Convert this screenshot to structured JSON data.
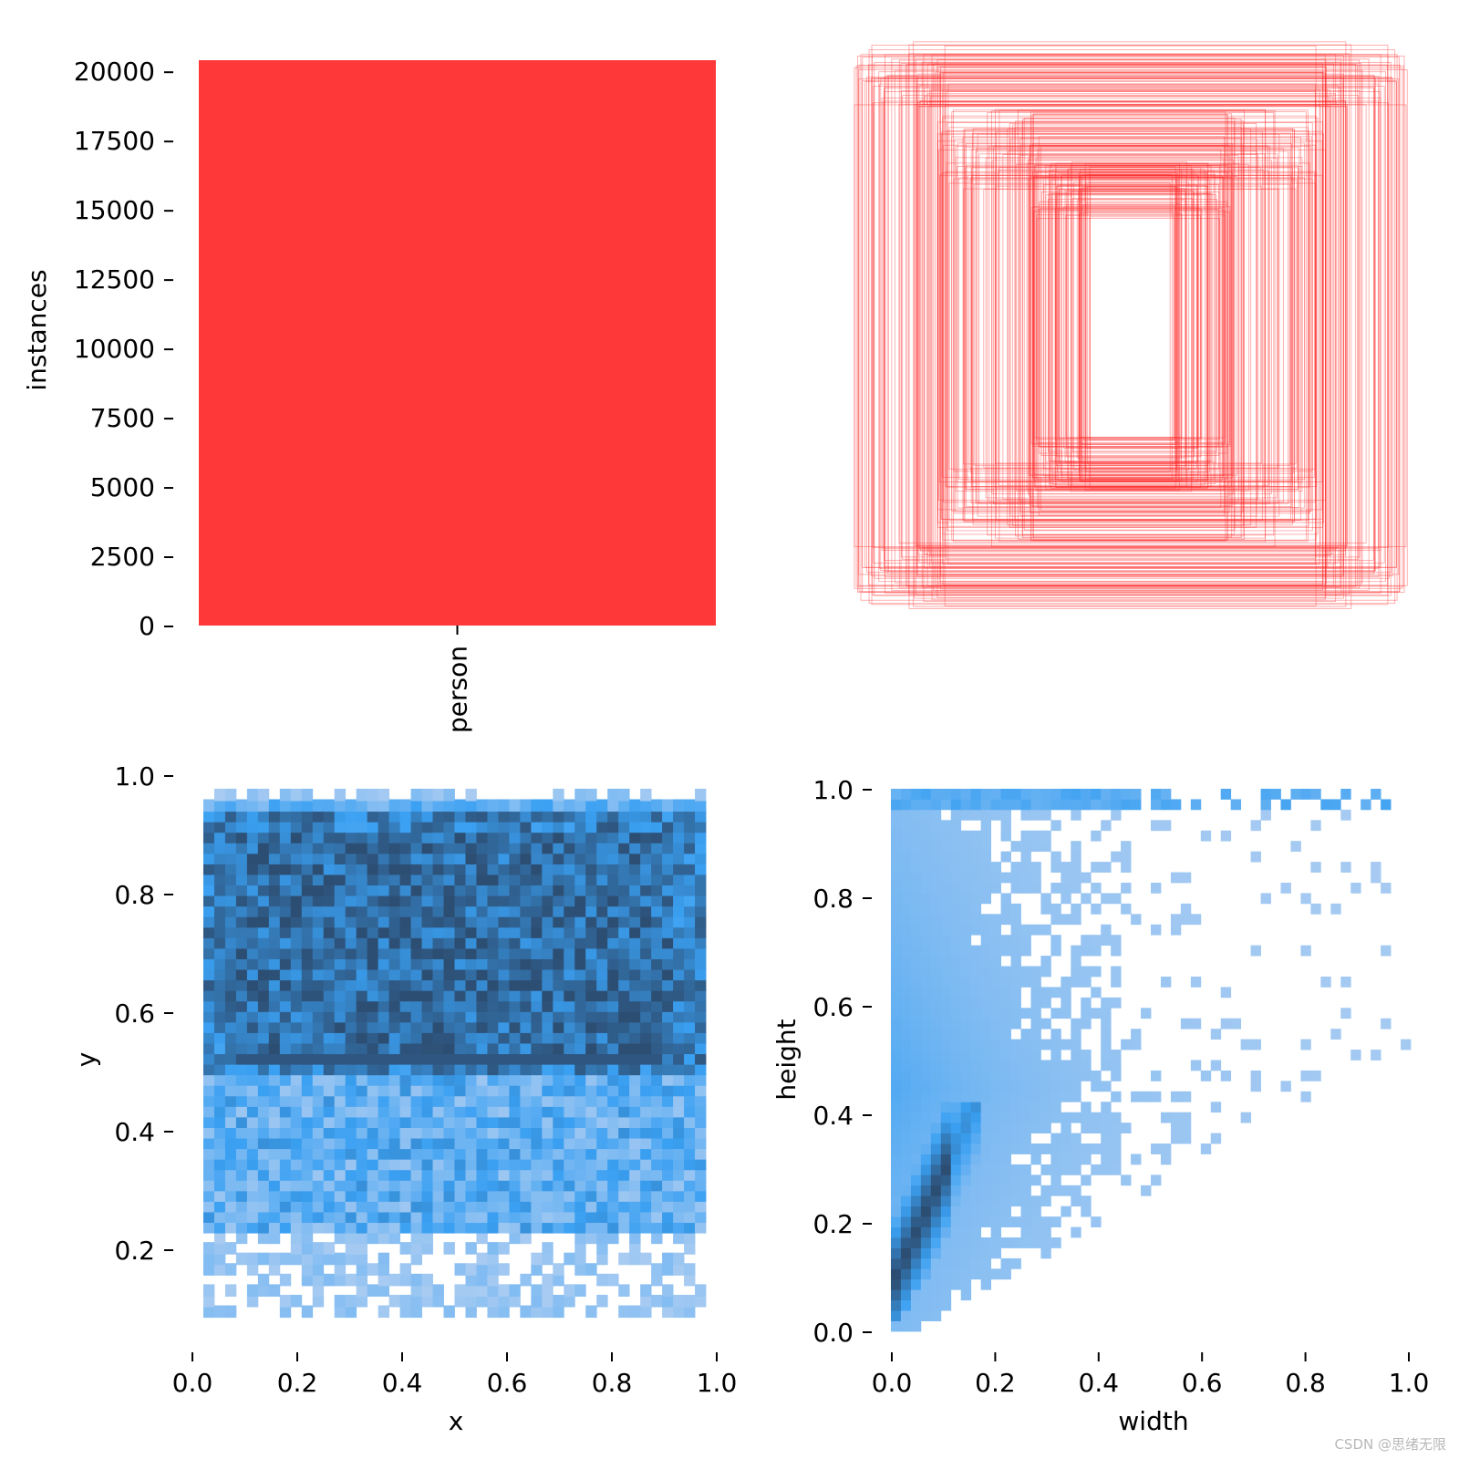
{
  "watermark": "CSDN @思绪无限",
  "colors": {
    "bar": "#fe3838",
    "boxes": "#ff2a2a",
    "hist_light": "#a8cbf2",
    "hist_mid": "#3aa0f2",
    "hist_dark": "#2d4e73",
    "axis": "#000000"
  },
  "chart_data": [
    {
      "id": "instances",
      "type": "bar",
      "categories": [
        "person"
      ],
      "values": [
        20400
      ],
      "ylabel": "instances",
      "xlabel": "",
      "yticks": [
        "0",
        "2500",
        "5000",
        "7500",
        "10000",
        "12500",
        "15000",
        "17500",
        "20000"
      ],
      "ylim": [
        0,
        20500
      ]
    },
    {
      "id": "box-overlay",
      "type": "scatter",
      "description_shown": "overlaid bounding boxes centered in a unit square",
      "x": [
        0.5
      ],
      "y": [
        0.5
      ],
      "note_shown": ""
    },
    {
      "id": "xy-hist",
      "type": "heatmap",
      "xlabel": "x",
      "ylabel": "y",
      "xticks": [
        "0.0",
        "0.2",
        "0.4",
        "0.6",
        "0.8",
        "1.0"
      ],
      "yticks": [
        "0.2",
        "0.4",
        "0.6",
        "0.8",
        "1.0"
      ],
      "xlim": [
        0,
        1
      ],
      "ylim": [
        0,
        1
      ],
      "dense_band_y": [
        0.48,
        0.9
      ]
    },
    {
      "id": "wh-hist",
      "type": "heatmap",
      "xlabel": "width",
      "ylabel": "height",
      "xticks": [
        "0.0",
        "0.2",
        "0.4",
        "0.6",
        "0.8",
        "1.0"
      ],
      "yticks": [
        "0.0",
        "0.2",
        "0.4",
        "0.6",
        "0.8",
        "1.0"
      ],
      "xlim": [
        0,
        1
      ],
      "ylim": [
        0,
        1
      ],
      "peak": {
        "width": 0.06,
        "height": 0.18
      }
    }
  ]
}
